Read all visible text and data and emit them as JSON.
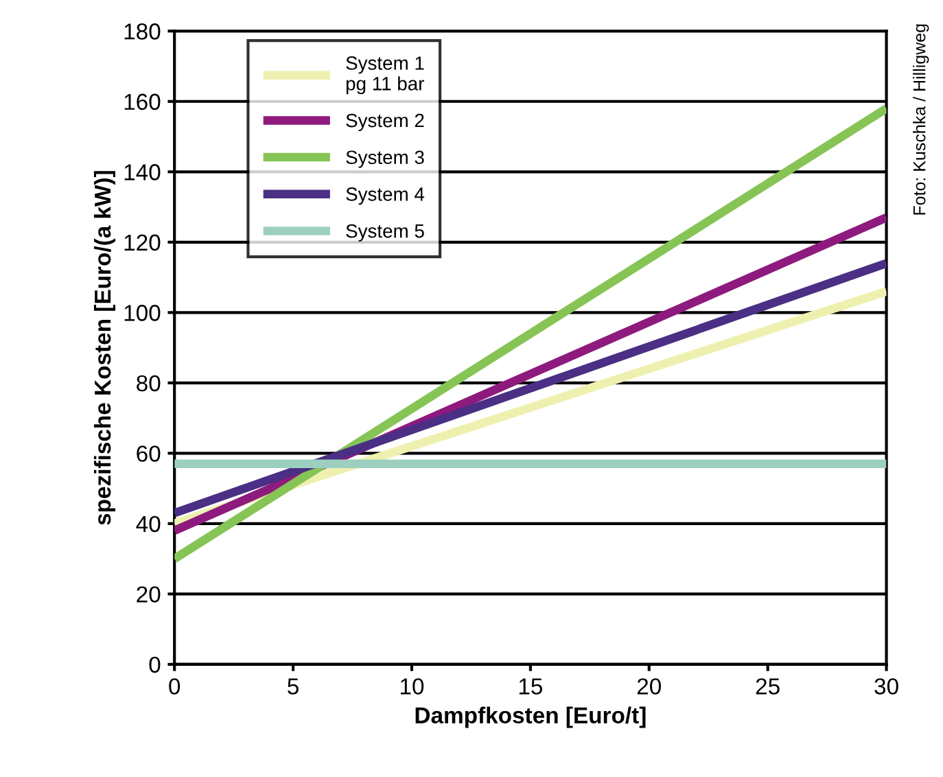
{
  "chart_data": {
    "type": "line",
    "xlabel": "Dampfkosten [Euro/t]",
    "ylabel": "spezifische Kosten [Euro/(a kW)]",
    "x": [
      0,
      30
    ],
    "series": [
      {
        "name": "System 1\npg 11 bar",
        "color": "#eef0b0",
        "values": [
          40,
          106
        ]
      },
      {
        "name": "System 2",
        "color": "#8e1a7e",
        "values": [
          38,
          127
        ]
      },
      {
        "name": "System 3",
        "color": "#86c455",
        "values": [
          30,
          158
        ]
      },
      {
        "name": "System 4",
        "color": "#4a2f84",
        "values": [
          43,
          114
        ]
      },
      {
        "name": "System 5",
        "color": "#9ccfc0",
        "values": [
          57,
          57
        ]
      }
    ],
    "xlim": [
      0,
      30
    ],
    "xticks": [
      0,
      5,
      10,
      15,
      20,
      25,
      30
    ],
    "ylim": [
      0,
      180
    ],
    "yticks": [
      0,
      20,
      40,
      60,
      80,
      100,
      120,
      140,
      160,
      180
    ],
    "grid": "y",
    "legend": "top left",
    "marker": "none",
    "line_style": "solid",
    "annotations": [
      "Foto: Kuschka / Hilligweg"
    ]
  }
}
